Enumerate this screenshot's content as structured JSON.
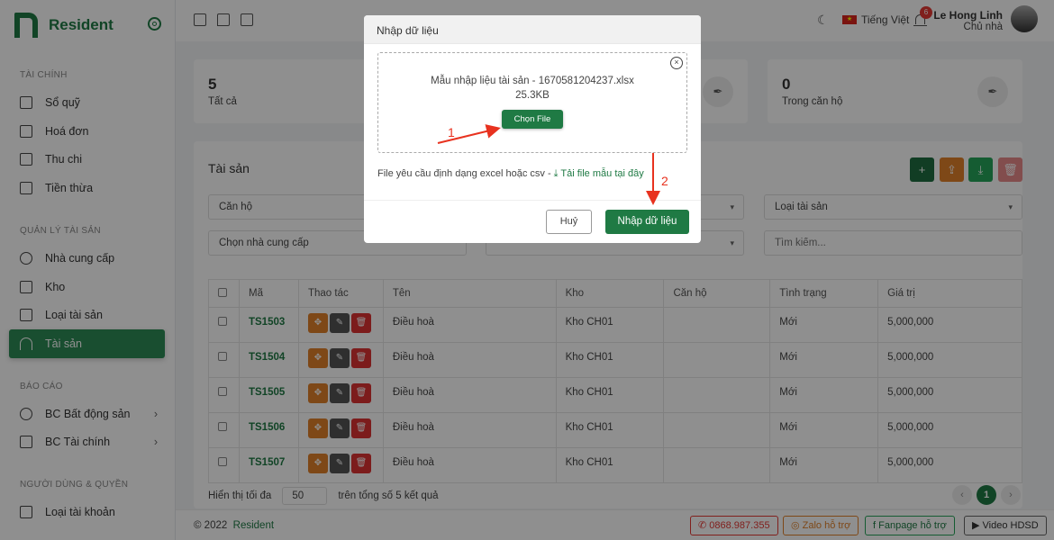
{
  "brand": {
    "name": "Resident",
    "color": "#1f7a44"
  },
  "sidebar": {
    "sections": [
      {
        "title": "TÀI CHÍNH",
        "items": [
          {
            "label": "Sổ quỹ",
            "icon": "book-icon"
          },
          {
            "label": "Hoá đơn",
            "icon": "file-icon"
          },
          {
            "label": "Thu chi",
            "icon": "folder-plus-icon"
          },
          {
            "label": "Tiền thừa",
            "icon": "bag-icon"
          }
        ]
      },
      {
        "title": "QUẢN LÝ TÀI SẢN",
        "items": [
          {
            "label": "Nhà cung cấp",
            "icon": "globe-icon"
          },
          {
            "label": "Kho",
            "icon": "box-icon"
          },
          {
            "label": "Loại tài sản",
            "icon": "tv-icon"
          },
          {
            "label": "Tài sản",
            "icon": "umbrella-icon",
            "active": true
          }
        ]
      },
      {
        "title": "BÁO CÁO",
        "items": [
          {
            "label": "BC Bất động sản",
            "icon": "globe-icon"
          },
          {
            "label": "BC Tài chính",
            "icon": "box-icon"
          }
        ]
      },
      {
        "title": "NGƯỜI DÙNG & QUYỀN",
        "items": [
          {
            "label": "Loại tài khoản",
            "icon": "shield-icon"
          }
        ]
      }
    ]
  },
  "topbar": {
    "language": "Tiếng Việt",
    "notifications": "6",
    "user_name": "Le Hong Linh",
    "user_role": "Chủ nhà"
  },
  "stats": [
    {
      "value": "5",
      "label": "Tất cả"
    },
    {
      "value": "0",
      "label": "Trong căn hộ"
    }
  ],
  "panel": {
    "title": "Tài sản",
    "filters": {
      "apartment": "Căn hộ",
      "asset_type": "Loại tài sản",
      "supplier": "Chọn nhà cung cấp",
      "search_placeholder": "Tìm kiếm..."
    },
    "columns": [
      "Mã",
      "Thao tác",
      "Tên",
      "Kho",
      "Căn hộ",
      "Tình trạng",
      "Giá trị"
    ],
    "rows": [
      {
        "code": "TS1503",
        "name": "Điều hoà",
        "warehouse": "Kho CH01",
        "apartment": "",
        "status": "Mới",
        "value": "5,000,000"
      },
      {
        "code": "TS1504",
        "name": "Điều hoà",
        "warehouse": "Kho CH01",
        "apartment": "",
        "status": "Mới",
        "value": "5,000,000"
      },
      {
        "code": "TS1505",
        "name": "Điều hoà",
        "warehouse": "Kho CH01",
        "apartment": "",
        "status": "Mới",
        "value": "5,000,000"
      },
      {
        "code": "TS1506",
        "name": "Điều hoà",
        "warehouse": "Kho CH01",
        "apartment": "",
        "status": "Mới",
        "value": "5,000,000"
      },
      {
        "code": "TS1507",
        "name": "Điều hoà",
        "warehouse": "Kho CH01",
        "apartment": "",
        "status": "Mới",
        "value": "5,000,000"
      }
    ],
    "pager": {
      "show_label": "Hiển thị tối đa",
      "page_size": "50",
      "total_label": "trên tổng số 5 kết quả",
      "current_page": "1"
    }
  },
  "footer": {
    "copyright": "© 2022",
    "brand": "Resident",
    "phone": "0868.987.355",
    "zalo": "Zalo hỗ trợ",
    "fanpage": "Fanpage hỗ trợ",
    "video": "Video HDSD"
  },
  "modal": {
    "title": "Nhập dữ liệu",
    "file_name": "Mẫu nhập liệu tài sản - 1670581204237.xlsx",
    "file_size": "25.3KB",
    "choose_file": "Chọn File",
    "requirement": "File yêu cầu định dạng excel hoặc csv - ",
    "template_link": "Tải file mẫu tại đây",
    "cancel": "Huỷ",
    "submit": "Nhập dữ liệu"
  },
  "annotations": {
    "step1": "1",
    "step2": "2",
    "color": "#e8321f"
  }
}
